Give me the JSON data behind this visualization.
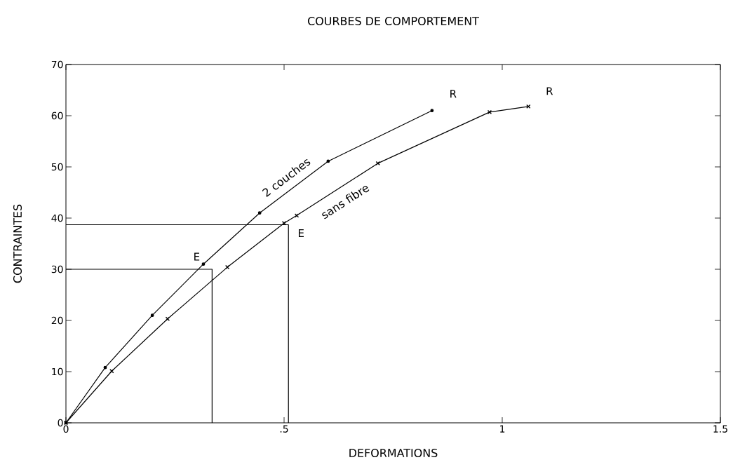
{
  "chart_data": {
    "type": "line",
    "title": "COURBES DE COMPORTEMENT",
    "xlabel": "DEFORMATIONS",
    "ylabel": "CONTRAINTES",
    "xlim": [
      0,
      1.5
    ],
    "ylim": [
      0,
      70
    ],
    "xticks": [
      0,
      {
        "value": 0.5,
        "label": ".5"
      },
      1,
      1.5
    ],
    "yticks": [
      0,
      10,
      20,
      30,
      40,
      50,
      60,
      70
    ],
    "grid": false,
    "series": [
      {
        "name": "2 couches",
        "color": "#000000",
        "marker": "circle",
        "x": [
          0,
          0.09,
          0.198,
          0.315,
          0.444,
          0.601,
          0.839
        ],
        "values": [
          0,
          10.8,
          21,
          31,
          41,
          51.1,
          61
        ]
      },
      {
        "name": "sans fibre",
        "color": "#000000",
        "marker": "cross",
        "x": [
          0,
          0.105,
          0.233,
          0.37,
          0.5,
          0.529,
          0.715,
          0.971,
          1.06
        ],
        "values": [
          0,
          10.1,
          20.3,
          30.4,
          39,
          40.5,
          50.7,
          60.7,
          61.8
        ]
      },
      {
        "color": "#000000",
        "marker": "none",
        "x": [
          0,
          0.335,
          0.335
        ],
        "values": [
          30,
          30,
          0
        ]
      },
      {
        "color": "#000000",
        "marker": "none",
        "x": [
          0,
          0.51,
          0.51
        ],
        "values": [
          38.7,
          38.7,
          0
        ]
      }
    ],
    "annotations": [
      {
        "text": "E",
        "x": 0.335,
        "y": 30
      },
      {
        "text": "E",
        "x": 0.51,
        "y": 38.7
      },
      {
        "text": "R",
        "x": 0.839,
        "y": 61
      },
      {
        "text": "R",
        "x": 1.06,
        "y": 61.8
      }
    ]
  }
}
